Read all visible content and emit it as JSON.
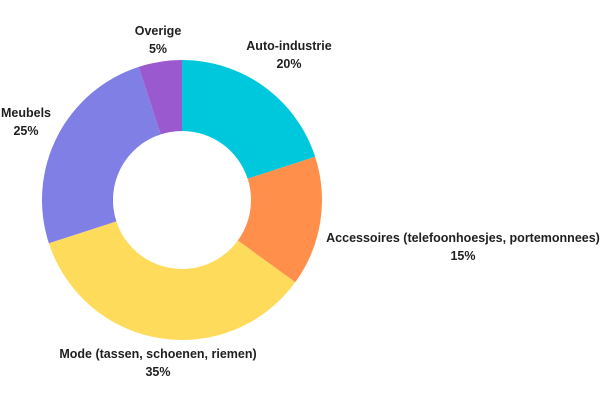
{
  "chart_data": {
    "type": "pie",
    "donut": true,
    "legend": "none",
    "slices": [
      {
        "label": "Auto-industrie",
        "value": 20,
        "value_label": "20%",
        "color": "#00C8DC"
      },
      {
        "label": "Accessoires (telefoonhoesjes, portemonnees)",
        "value": 15,
        "value_label": "15%",
        "color": "#FF8F4A"
      },
      {
        "label": "Mode (tassen, schoenen, riemen)",
        "value": 35,
        "value_label": "35%",
        "color": "#FFDB5C"
      },
      {
        "label": "Meubels",
        "value": 25,
        "value_label": "25%",
        "color": "#7F7FE6"
      },
      {
        "label": "Overige",
        "value": 5,
        "value_label": "5%",
        "color": "#9B59D0"
      }
    ]
  }
}
